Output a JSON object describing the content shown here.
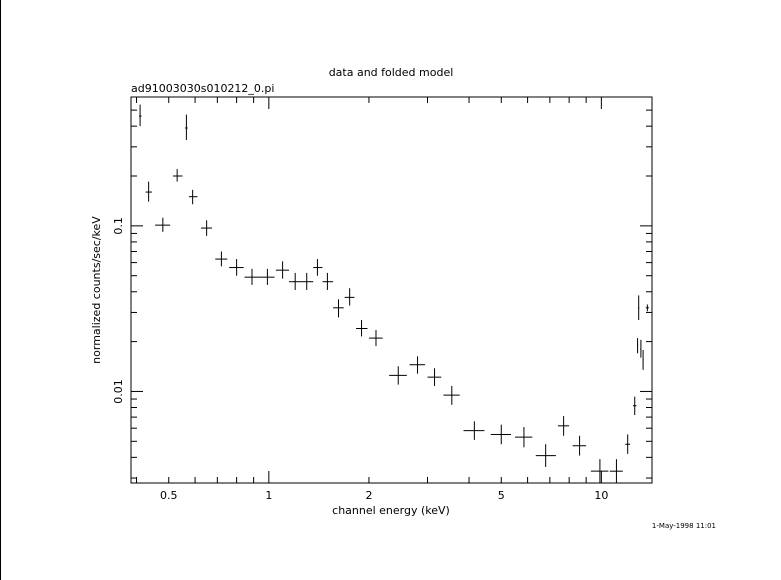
{
  "chart_data": {
    "type": "scatter",
    "title": "data and folded model",
    "subtitle": "ad91003030s010212_0.pi",
    "xlabel": "channel energy (keV)",
    "ylabel": "normalized counts/sec/keV",
    "xscale": "log",
    "yscale": "log",
    "xlim": [
      0.385,
      14.2
    ],
    "ylim": [
      0.0028,
      0.6
    ],
    "x_tick_labels": [
      {
        "value": 0.5,
        "label": "0.5"
      },
      {
        "value": 1,
        "label": "1"
      },
      {
        "value": 2,
        "label": "2"
      },
      {
        "value": 5,
        "label": "5"
      },
      {
        "value": 10,
        "label": "10"
      }
    ],
    "y_tick_labels": [
      {
        "value": 0.1,
        "label": "0.1"
      },
      {
        "value": 0.01,
        "label": "0.01"
      }
    ],
    "grid": false,
    "legend": "none",
    "timestamp": "1-May-1998 11:01",
    "series": [
      {
        "style": "error-bar crosses",
        "points": [
          {
            "x": 0.41,
            "xerr": [
              0.407,
              0.414
            ],
            "y": 0.46,
            "yerr": [
              0.4,
              0.54
            ]
          },
          {
            "x": 0.435,
            "xerr": [
              0.426,
              0.445
            ],
            "y": 0.16,
            "yerr": [
              0.14,
              0.185
            ]
          },
          {
            "x": 0.48,
            "xerr": [
              0.455,
              0.505
            ],
            "y": 0.101,
            "yerr": [
              0.092,
              0.112
            ]
          },
          {
            "x": 0.53,
            "xerr": [
              0.515,
              0.55
            ],
            "y": 0.2,
            "yerr": [
              0.185,
              0.22
            ]
          },
          {
            "x": 0.565,
            "xerr": [
              0.56,
              0.57
            ],
            "y": 0.39,
            "yerr": [
              0.33,
              0.47
            ]
          },
          {
            "x": 0.59,
            "xerr": [
              0.575,
              0.61
            ],
            "y": 0.15,
            "yerr": [
              0.135,
              0.165
            ]
          },
          {
            "x": 0.65,
            "xerr": [
              0.625,
              0.675
            ],
            "y": 0.097,
            "yerr": [
              0.087,
              0.108
            ]
          },
          {
            "x": 0.72,
            "xerr": [
              0.69,
              0.75
            ],
            "y": 0.063,
            "yerr": [
              0.057,
              0.07
            ]
          },
          {
            "x": 0.8,
            "xerr": [
              0.76,
              0.84
            ],
            "y": 0.056,
            "yerr": [
              0.05,
              0.063
            ]
          },
          {
            "x": 0.89,
            "xerr": [
              0.845,
              0.94
            ],
            "y": 0.049,
            "yerr": [
              0.044,
              0.055
            ]
          },
          {
            "x": 0.99,
            "xerr": [
              0.94,
              1.04
            ],
            "y": 0.049,
            "yerr": [
              0.044,
              0.055
            ]
          },
          {
            "x": 1.1,
            "xerr": [
              1.05,
              1.15
            ],
            "y": 0.054,
            "yerr": [
              0.048,
              0.061
            ]
          },
          {
            "x": 1.2,
            "xerr": [
              1.15,
              1.25
            ],
            "y": 0.046,
            "yerr": [
              0.041,
              0.052
            ]
          },
          {
            "x": 1.3,
            "xerr": [
              1.25,
              1.36
            ],
            "y": 0.046,
            "yerr": [
              0.041,
              0.052
            ]
          },
          {
            "x": 1.4,
            "xerr": [
              1.36,
              1.45
            ],
            "y": 0.056,
            "yerr": [
              0.05,
              0.063
            ]
          },
          {
            "x": 1.5,
            "xerr": [
              1.45,
              1.56
            ],
            "y": 0.046,
            "yerr": [
              0.041,
              0.052
            ]
          },
          {
            "x": 1.62,
            "xerr": [
              1.56,
              1.68
            ],
            "y": 0.032,
            "yerr": [
              0.028,
              0.036
            ]
          },
          {
            "x": 1.75,
            "xerr": [
              1.69,
              1.81
            ],
            "y": 0.037,
            "yerr": [
              0.033,
              0.042
            ]
          },
          {
            "x": 1.9,
            "xerr": [
              1.83,
              1.98
            ],
            "y": 0.024,
            "yerr": [
              0.0215,
              0.027
            ]
          },
          {
            "x": 2.1,
            "xerr": [
              2.0,
              2.2
            ],
            "y": 0.021,
            "yerr": [
              0.0188,
              0.0235
            ]
          },
          {
            "x": 2.45,
            "xerr": [
              2.3,
              2.6
            ],
            "y": 0.0125,
            "yerr": [
              0.011,
              0.0142
            ]
          },
          {
            "x": 2.8,
            "xerr": [
              2.65,
              2.95
            ],
            "y": 0.0145,
            "yerr": [
              0.0128,
              0.0163
            ]
          },
          {
            "x": 3.15,
            "xerr": [
              3.0,
              3.3
            ],
            "y": 0.0122,
            "yerr": [
              0.0108,
              0.0138
            ]
          },
          {
            "x": 3.55,
            "xerr": [
              3.35,
              3.75
            ],
            "y": 0.0095,
            "yerr": [
              0.0083,
              0.0108
            ]
          },
          {
            "x": 4.15,
            "xerr": [
              3.85,
              4.45
            ],
            "y": 0.0058,
            "yerr": [
              0.0051,
              0.0066
            ]
          },
          {
            "x": 5.0,
            "xerr": [
              4.65,
              5.35
            ],
            "y": 0.0055,
            "yerr": [
              0.0048,
              0.0063
            ]
          },
          {
            "x": 5.85,
            "xerr": [
              5.5,
              6.2
            ],
            "y": 0.0053,
            "yerr": [
              0.0046,
              0.0061
            ]
          },
          {
            "x": 6.8,
            "xerr": [
              6.35,
              7.3
            ],
            "y": 0.0041,
            "yerr": [
              0.0035,
              0.0048
            ]
          },
          {
            "x": 7.7,
            "xerr": [
              7.4,
              8.0
            ],
            "y": 0.0062,
            "yerr": [
              0.0054,
              0.0071
            ]
          },
          {
            "x": 8.6,
            "xerr": [
              8.2,
              9.0
            ],
            "y": 0.0047,
            "yerr": [
              0.0041,
              0.0054
            ]
          },
          {
            "x": 9.9,
            "xerr": [
              9.3,
              10.5
            ],
            "y": 0.0033,
            "yerr": [
              0.0028,
              0.0039
            ]
          },
          {
            "x": 11.1,
            "xerr": [
              10.6,
              11.6
            ],
            "y": 0.0033,
            "yerr": [
              0.0028,
              0.0039
            ]
          },
          {
            "x": 12.0,
            "xerr": [
              11.8,
              12.2
            ],
            "y": 0.0048,
            "yerr": [
              0.0042,
              0.0055
            ]
          },
          {
            "x": 12.6,
            "xerr": [
              12.45,
              12.75
            ],
            "y": 0.0082,
            "yerr": [
              0.0072,
              0.0093
            ]
          },
          {
            "x": 12.85,
            "xerr": [
              12.8,
              12.9
            ],
            "y": 0.019,
            "yerr": [
              0.017,
              0.021
            ]
          },
          {
            "x": 12.95,
            "xerr": [
              12.9,
              13.0
            ],
            "y": 0.032,
            "yerr": [
              0.027,
              0.038
            ]
          },
          {
            "x": 13.15,
            "xerr": [
              13.1,
              13.2
            ],
            "y": 0.018,
            "yerr": [
              0.016,
              0.0205
            ]
          },
          {
            "x": 13.35,
            "xerr": [
              13.3,
              13.4
            ],
            "y": 0.0155,
            "yerr": [
              0.0135,
              0.0178
            ]
          },
          {
            "x": 13.75,
            "xerr": [
              13.6,
              13.9
            ],
            "y": 0.032,
            "yerr": [
              0.0305,
              0.0335
            ]
          }
        ]
      }
    ]
  }
}
